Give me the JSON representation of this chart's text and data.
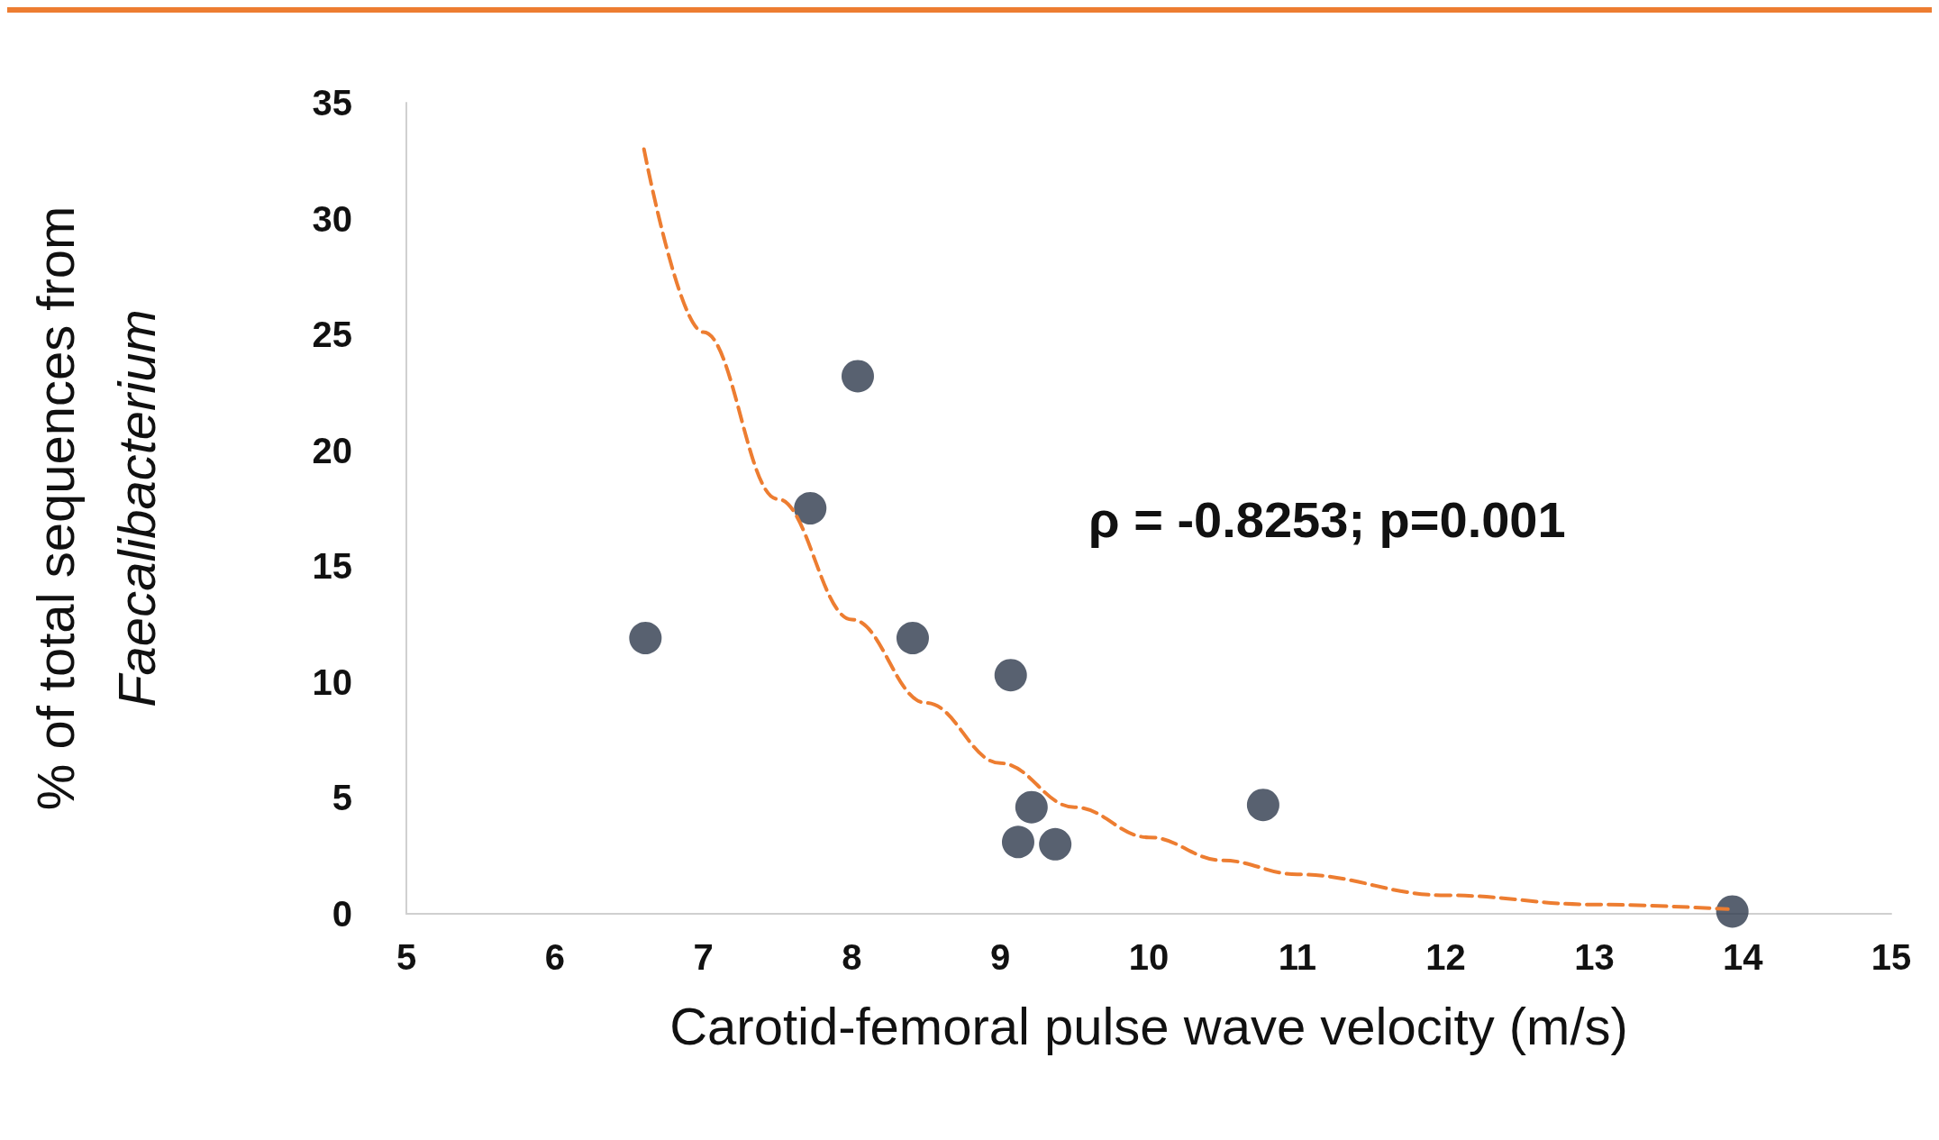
{
  "chart_data": {
    "type": "scatter",
    "xlabel": "Carotid-femoral pulse wave velocity (m/s)",
    "ylabel": "% of total sequences from Faecalibacterium",
    "xlim": [
      5,
      15
    ],
    "xticks": [
      5,
      6,
      7,
      8,
      9,
      10,
      11,
      12,
      13,
      14,
      15
    ],
    "ylim": [
      0,
      35
    ],
    "yticks": [
      0,
      5,
      10,
      15,
      20,
      25,
      30,
      35
    ],
    "grid": false,
    "marker": "circle",
    "annotations": [
      "ρ = -0.8253; p=0.001"
    ],
    "series": [
      {
        "color": "#2e3a4c",
        "x": [
          6.61,
          7.72,
          8.04,
          8.41,
          9.07,
          9.21,
          9.12,
          9.37,
          10.77,
          13.93
        ],
        "values": [
          11.9,
          17.5,
          23.2,
          11.9,
          10.3,
          4.6,
          3.1,
          3.0,
          4.7,
          0.1
        ]
      },
      {
        "type": "line",
        "color": "#ed7d31",
        "line_style": "dashed",
        "marker": "none",
        "x": [
          6.6,
          7,
          7.5,
          8,
          8.5,
          9,
          9.5,
          10,
          10.5,
          11,
          12,
          13,
          13.9
        ],
        "values": [
          33,
          25.1,
          17.9,
          12.7,
          9.1,
          6.5,
          4.6,
          3.3,
          2.3,
          1.7,
          0.8,
          0.4,
          0.2
        ]
      }
    ]
  }
}
